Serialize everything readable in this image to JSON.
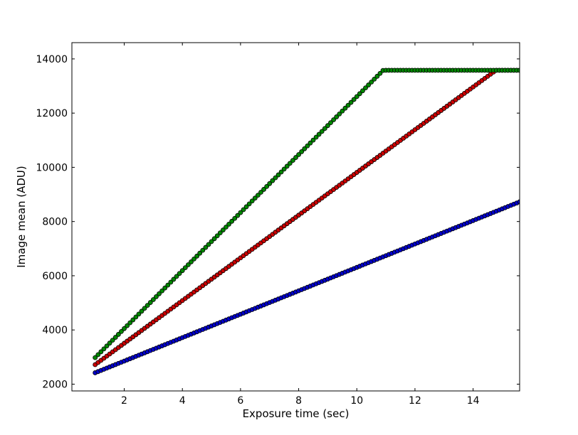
{
  "chart_data": {
    "type": "scatter",
    "xlabel": "Exposure time (sec)",
    "ylabel": "Image mean (ADU)",
    "xlim": [
      0.2,
      15.6
    ],
    "ylim": [
      1750,
      14600
    ],
    "xticks": [
      2,
      4,
      6,
      8,
      10,
      12,
      14
    ],
    "yticks": [
      2000,
      4000,
      6000,
      8000,
      10000,
      12000,
      14000
    ],
    "grid": false,
    "legend": "none",
    "marker": "circle",
    "x_step": 0.1,
    "series": [
      {
        "color": "#0000cc",
        "x_range": [
          1.0,
          15.6
        ],
        "y_start": 2420,
        "slope": 432,
        "saturation": null
      },
      {
        "color": "#cc0000",
        "x_range": [
          1.0,
          15.6
        ],
        "y_start": 2720,
        "slope": 788,
        "saturation": 13580
      },
      {
        "color": "#008800",
        "x_range": [
          1.0,
          15.6
        ],
        "y_start": 2980,
        "slope": 1070,
        "saturation": 13580
      }
    ]
  }
}
